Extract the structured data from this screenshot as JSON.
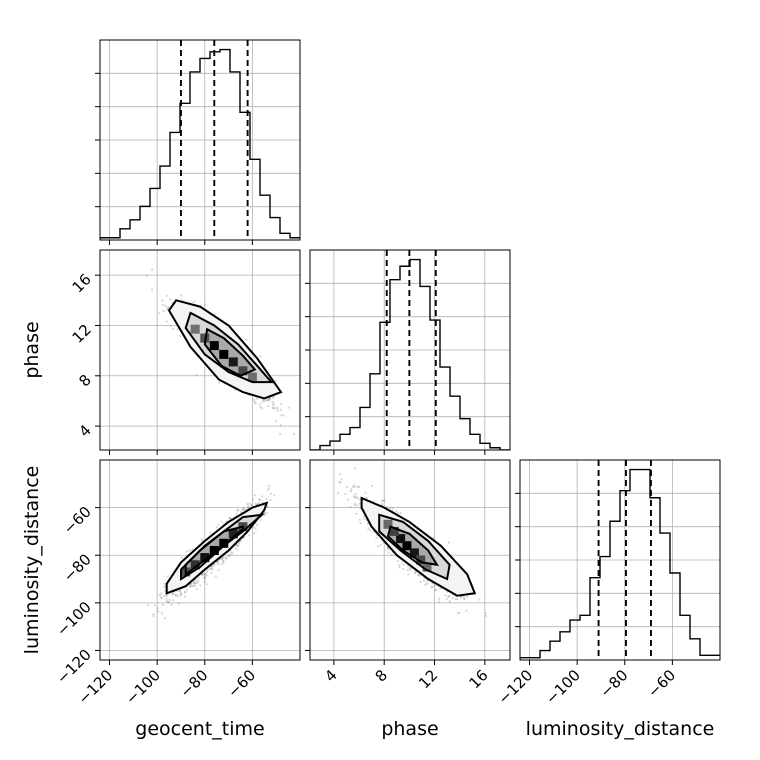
{
  "chart_data": {
    "type": "corner",
    "parameters": [
      "geocent_time",
      "phase",
      "luminosity_distance"
    ],
    "axes": {
      "geocent_time": {
        "label": "geocent_time",
        "range": [
          -124,
          -40
        ],
        "ticks": [
          -120,
          -100,
          -80,
          -60
        ],
        "tick_labels": [
          "−120",
          "−100",
          "−80",
          "−60"
        ]
      },
      "phase": {
        "label": "phase",
        "range": [
          2.1,
          18.0
        ],
        "ticks": [
          4,
          8,
          12,
          16
        ],
        "tick_labels": [
          "4",
          "8",
          "12",
          "16"
        ]
      },
      "luminosity_distance": {
        "label": "luminosity_distance",
        "range": [
          -124,
          -40
        ],
        "ticks": [
          -120,
          -100,
          -80,
          -60
        ],
        "tick_labels": [
          "−120",
          "−100",
          "−80",
          "−60"
        ]
      }
    },
    "marginals": [
      {
        "parameter": "geocent_time",
        "bin_edges": [
          -124,
          -119.8,
          -115.6,
          -111.4,
          -107.2,
          -103,
          -98.8,
          -94.6,
          -90.4,
          -86.2,
          -82,
          -77.8,
          -73.6,
          -69.4,
          -65.2,
          -61,
          -56.8,
          -52.6,
          -48.4,
          -44.2,
          -40
        ],
        "counts": [
          1,
          1,
          5,
          9,
          15,
          23,
          33,
          48,
          61,
          75,
          81,
          84,
          85,
          75,
          57,
          36,
          20,
          10,
          3,
          1
        ],
        "quantiles": [
          -90.0,
          -76.0,
          -62.0
        ]
      },
      {
        "parameter": "phase",
        "bin_edges": [
          2.1,
          2.895,
          3.69,
          4.485,
          5.28,
          6.075,
          6.87,
          7.665,
          8.46,
          9.255,
          10.05,
          10.845,
          11.64,
          12.435,
          13.23,
          14.025,
          14.82,
          15.615,
          16.41,
          17.205,
          18.0
        ],
        "counts": [
          0,
          2,
          4,
          7,
          10,
          19,
          34,
          57,
          76,
          82,
          85,
          73,
          58,
          37,
          24,
          14,
          7,
          3,
          1,
          0
        ],
        "quantiles": [
          8.2,
          10.0,
          12.1
        ]
      },
      {
        "parameter": "luminosity_distance",
        "bin_edges": [
          -124,
          -119.8,
          -115.6,
          -111.4,
          -107.2,
          -103,
          -98.8,
          -94.6,
          -90.4,
          -86.2,
          -82,
          -77.8,
          -73.6,
          -69.4,
          -65.2,
          -61,
          -56.8,
          -52.6,
          -48.4,
          -44.2,
          -40
        ],
        "counts": [
          1,
          1,
          4,
          8,
          12,
          17,
          19,
          35,
          44,
          59,
          72,
          81,
          81,
          69,
          54,
          37,
          19,
          9,
          2,
          2
        ],
        "quantiles": [
          -91.0,
          -79.5,
          -69.0
        ]
      }
    ],
    "joint": [
      {
        "x": "geocent_time",
        "y": "phase",
        "correlation": "negative",
        "center": [
          -72,
          9.7
        ],
        "contours": [
          [
            [
              -92,
              14.0
            ],
            [
              -82,
              13.5
            ],
            [
              -70,
              12.0
            ],
            [
              -58,
              9.4
            ],
            [
              -48,
              6.7
            ],
            [
              -55,
              6.2
            ],
            [
              -64,
              6.7
            ],
            [
              -74,
              7.7
            ],
            [
              -86,
              10.3
            ],
            [
              -95,
              13.2
            ]
          ],
          [
            [
              -86,
              13.0
            ],
            [
              -76,
              12.0
            ],
            [
              -66,
              10.5
            ],
            [
              -58,
              8.8
            ],
            [
              -52,
              7.5
            ],
            [
              -60,
              7.5
            ],
            [
              -70,
              8.3
            ],
            [
              -80,
              9.7
            ],
            [
              -88,
              11.8
            ]
          ],
          [
            [
              -79,
              11.7
            ],
            [
              -72,
              11.0
            ],
            [
              -64,
              9.6
            ],
            [
              -59,
              8.5
            ],
            [
              -65,
              8.0
            ],
            [
              -73,
              8.8
            ],
            [
              -80,
              10.5
            ]
          ]
        ],
        "density_cells": [
          [
            -76,
            10.4,
            1.0
          ],
          [
            -72,
            9.7,
            1.0
          ],
          [
            -68,
            9.1,
            0.85
          ],
          [
            -80,
            11.0,
            0.5
          ],
          [
            -64,
            8.4,
            0.55
          ],
          [
            -84,
            11.7,
            0.3
          ],
          [
            -60,
            7.9,
            0.3
          ]
        ]
      },
      {
        "x": "geocent_time",
        "y": "luminosity_distance",
        "correlation": "positive",
        "center": [
          -76,
          -78
        ],
        "contours": [
          [
            [
              -96,
              -96
            ],
            [
              -88,
              -93
            ],
            [
              -80,
              -86
            ],
            [
              -70,
              -78
            ],
            [
              -62,
              -70
            ],
            [
              -55,
              -61
            ],
            [
              -54,
              -58
            ],
            [
              -60,
              -60
            ],
            [
              -70,
              -66
            ],
            [
              -80,
              -74
            ],
            [
              -90,
              -83
            ],
            [
              -96,
              -92
            ]
          ],
          [
            [
              -90,
              -90
            ],
            [
              -82,
              -85
            ],
            [
              -72,
              -76
            ],
            [
              -64,
              -70
            ],
            [
              -56,
              -63
            ],
            [
              -64,
              -64
            ],
            [
              -72,
              -70
            ],
            [
              -82,
              -78
            ],
            [
              -90,
              -86
            ]
          ],
          [
            [
              -88,
              -88
            ],
            [
              -80,
              -82
            ],
            [
              -70,
              -74
            ],
            [
              -64,
              -69
            ],
            [
              -64,
              -68
            ],
            [
              -72,
              -70
            ],
            [
              -80,
              -76
            ],
            [
              -88,
              -84
            ]
          ]
        ],
        "density_cells": [
          [
            -76,
            -78,
            1.0
          ],
          [
            -72,
            -75,
            1.0
          ],
          [
            -80,
            -81,
            0.9
          ],
          [
            -84,
            -84,
            0.7
          ],
          [
            -68,
            -71,
            0.8
          ],
          [
            -88,
            -87,
            0.5
          ],
          [
            -64,
            -68,
            0.55
          ]
        ]
      },
      {
        "x": "phase",
        "y": "luminosity_distance",
        "correlation": "negative",
        "center": [
          9.8,
          -76
        ],
        "contours": [
          [
            [
              6.2,
              -56
            ],
            [
              8.0,
              -60
            ],
            [
              10.0,
              -66
            ],
            [
              12.5,
              -76
            ],
            [
              14.6,
              -88
            ],
            [
              15.2,
              -96
            ],
            [
              13.8,
              -97
            ],
            [
              11.5,
              -90
            ],
            [
              9.0,
              -80
            ],
            [
              7.0,
              -68
            ],
            [
              6.2,
              -60
            ]
          ],
          [
            [
              7.6,
              -63
            ],
            [
              9.5,
              -66
            ],
            [
              11.5,
              -74
            ],
            [
              13.2,
              -84
            ],
            [
              13.0,
              -90
            ],
            [
              11.3,
              -86
            ],
            [
              9.3,
              -78
            ],
            [
              7.6,
              -70
            ]
          ],
          [
            [
              8.5,
              -68
            ],
            [
              10.0,
              -71
            ],
            [
              11.5,
              -78
            ],
            [
              12.2,
              -84
            ],
            [
              11.0,
              -83
            ],
            [
              9.5,
              -78
            ],
            [
              8.3,
              -72
            ]
          ]
        ],
        "density_cells": [
          [
            9.8,
            -76,
            1.0
          ],
          [
            9.3,
            -73,
            0.9
          ],
          [
            10.4,
            -79,
            0.85
          ],
          [
            8.8,
            -70,
            0.6
          ],
          [
            10.9,
            -82,
            0.55
          ],
          [
            8.3,
            -67,
            0.35
          ],
          [
            11.4,
            -85,
            0.35
          ]
        ]
      }
    ],
    "grid": true
  }
}
